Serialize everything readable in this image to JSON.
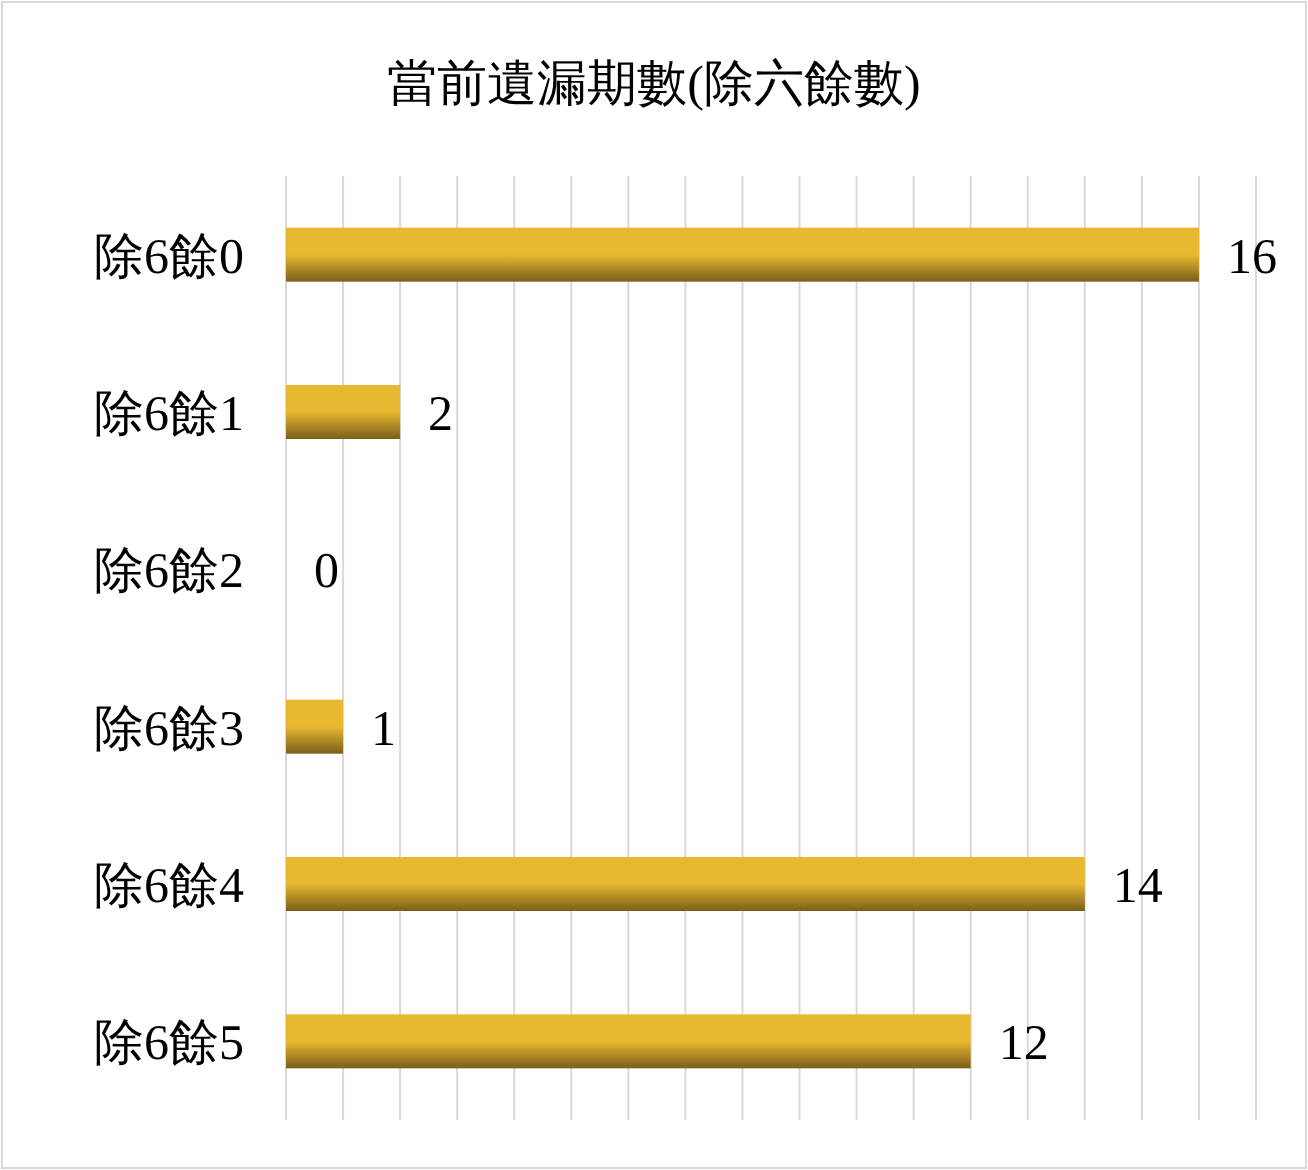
{
  "chart_data": {
    "type": "bar",
    "orientation": "horizontal",
    "title": "當前遺漏期數(除六餘數)",
    "categories": [
      "除6餘0",
      "除6餘1",
      "除6餘2",
      "除6餘3",
      "除6餘4",
      "除6餘5"
    ],
    "values": [
      16,
      2,
      0,
      1,
      14,
      12
    ],
    "color": "#e8b830",
    "xlim": [
      0,
      17
    ],
    "xticks": [
      {
        "value": 0,
        "label": null
      },
      {
        "value": 1,
        "label": null
      },
      {
        "value": 2,
        "label": null
      },
      {
        "value": 3,
        "label": null
      },
      {
        "value": 4,
        "label": null
      },
      {
        "value": 5,
        "label": null
      },
      {
        "value": 6,
        "label": null
      },
      {
        "value": 7,
        "label": null
      },
      {
        "value": 8,
        "label": null
      },
      {
        "value": 9,
        "label": null
      },
      {
        "value": 10,
        "label": null
      },
      {
        "value": 11,
        "label": null
      },
      {
        "value": 12,
        "label": null
      },
      {
        "value": 13,
        "label": null
      },
      {
        "value": 14,
        "label": null
      },
      {
        "value": 15,
        "label": null
      },
      {
        "value": 16,
        "label": null
      },
      {
        "value": 17,
        "label": null
      }
    ],
    "grid": "x",
    "data_labels": true
  }
}
